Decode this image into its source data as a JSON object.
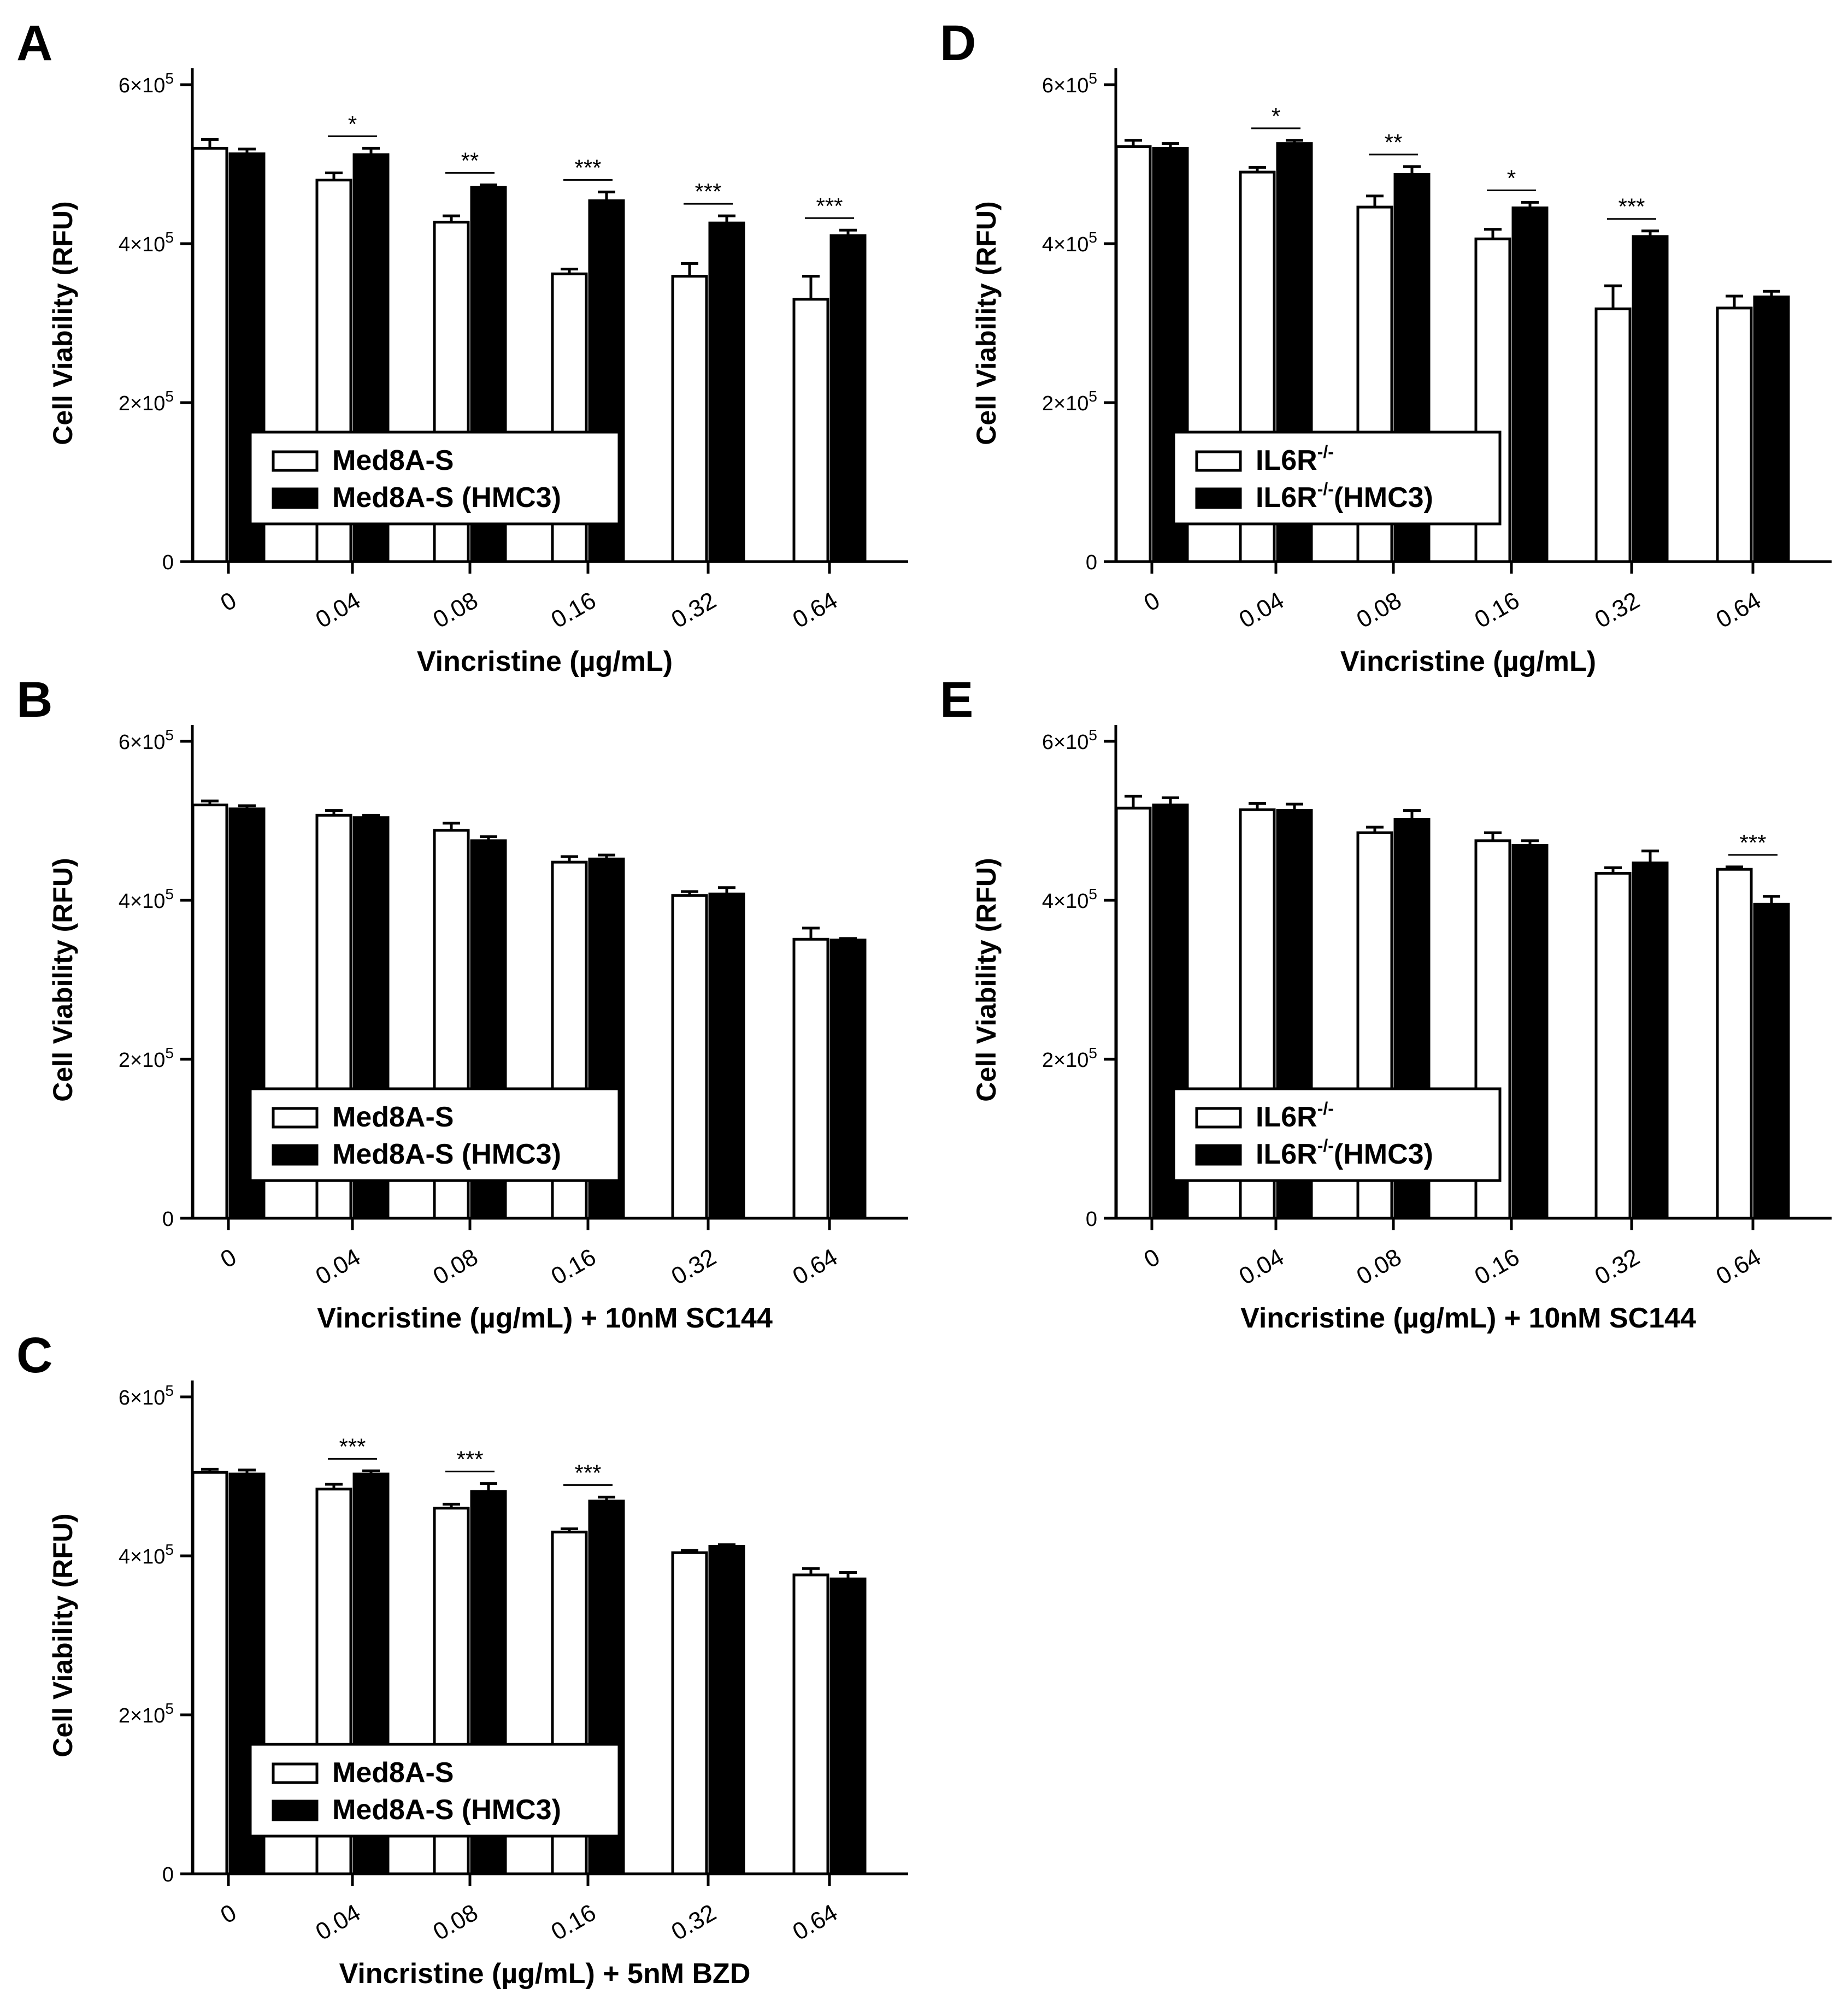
{
  "panels_meta": {
    "panel_letters": [
      "A",
      "D",
      "B",
      "E",
      "C"
    ]
  },
  "chart_data": [
    {
      "panel": "A",
      "type": "bar",
      "categories": [
        "0",
        "0.04",
        "0.08",
        "0.16",
        "0.32",
        "0.64"
      ],
      "xlabel": "Vincristine (µg/mL)",
      "ylabel": "Cell Viability (RFU)",
      "ylim": [
        0,
        600000
      ],
      "yticks": [
        {
          "value": 0,
          "label": "0",
          "sup": ""
        },
        {
          "value": 200000,
          "label": "2×10",
          "sup": "5"
        },
        {
          "value": 400000,
          "label": "4×10",
          "sup": "5"
        },
        {
          "value": 600000,
          "label": "6×10",
          "sup": "5"
        }
      ],
      "series": [
        {
          "name": "Med8A-S",
          "name_sup": "",
          "name_suffix": "",
          "fill": "#ffffff",
          "values": [
            520000,
            480000,
            427000,
            362000,
            359000,
            330000
          ],
          "errors": [
            11000,
            9000,
            8000,
            6000,
            16000,
            29000
          ]
        },
        {
          "name": "Med8A-S (HMC3)",
          "name_sup": "",
          "name_suffix": "",
          "fill": "#000000",
          "values": [
            513000,
            512000,
            471000,
            454000,
            426000,
            410000
          ],
          "errors": [
            6000,
            8000,
            3000,
            11000,
            9000,
            7000
          ]
        }
      ],
      "significance": [
        {
          "category": "0.04",
          "label": "*"
        },
        {
          "category": "0.08",
          "label": "**"
        },
        {
          "category": "0.16",
          "label": "***"
        },
        {
          "category": "0.32",
          "label": "***"
        },
        {
          "category": "0.64",
          "label": "***"
        }
      ],
      "legend": "bottom-left"
    },
    {
      "panel": "D",
      "type": "bar",
      "categories": [
        "0",
        "0.04",
        "0.08",
        "0.16",
        "0.32",
        "0.64"
      ],
      "xlabel": "Vincristine (µg/mL)",
      "ylabel": "Cell Viability (RFU)",
      "ylim": [
        0,
        600000
      ],
      "yticks": [
        {
          "value": 0,
          "label": "0",
          "sup": ""
        },
        {
          "value": 200000,
          "label": "2×10",
          "sup": "5"
        },
        {
          "value": 400000,
          "label": "4×10",
          "sup": "5"
        },
        {
          "value": 600000,
          "label": "6×10",
          "sup": "5"
        }
      ],
      "series": [
        {
          "name": "IL6R",
          "name_sup": "-/-",
          "name_suffix": "",
          "fill": "#ffffff",
          "values": [
            522000,
            490000,
            446000,
            406000,
            318000,
            319000
          ],
          "errors": [
            8000,
            6000,
            14000,
            12000,
            29000,
            15000
          ]
        },
        {
          "name": "IL6R",
          "name_sup": "-/-",
          "name_suffix": "(HMC3)",
          "fill": "#000000",
          "values": [
            520000,
            526000,
            487000,
            445000,
            409000,
            333000
          ],
          "errors": [
            6000,
            4000,
            10000,
            7000,
            7000,
            7000
          ]
        }
      ],
      "significance": [
        {
          "category": "0.04",
          "label": "*"
        },
        {
          "category": "0.08",
          "label": "**"
        },
        {
          "category": "0.16",
          "label": "*"
        },
        {
          "category": "0.32",
          "label": "***"
        }
      ],
      "legend": "bottom-left"
    },
    {
      "panel": "B",
      "type": "bar",
      "categories": [
        "0",
        "0.04",
        "0.08",
        "0.16",
        "0.32",
        "0.64"
      ],
      "xlabel": "Vincristine (µg/mL) + 10nM SC144",
      "ylabel": "Cell Viability (RFU)",
      "ylim": [
        0,
        600000
      ],
      "yticks": [
        {
          "value": 0,
          "label": "0",
          "sup": ""
        },
        {
          "value": 200000,
          "label": "2×10",
          "sup": "5"
        },
        {
          "value": 400000,
          "label": "4×10",
          "sup": "5"
        },
        {
          "value": 600000,
          "label": "6×10",
          "sup": "5"
        }
      ],
      "series": [
        {
          "name": "Med8A-S",
          "name_sup": "",
          "name_suffix": "",
          "fill": "#ffffff",
          "values": [
            520000,
            507000,
            488000,
            448000,
            406000,
            351000
          ],
          "errors": [
            5000,
            6000,
            9000,
            7000,
            5000,
            14000
          ]
        },
        {
          "name": "Med8A-S (HMC3)",
          "name_sup": "",
          "name_suffix": "",
          "fill": "#000000",
          "values": [
            515000,
            504000,
            475000,
            452000,
            408000,
            350000
          ],
          "errors": [
            4000,
            3000,
            5000,
            5000,
            8000,
            2000
          ]
        }
      ],
      "significance": [],
      "legend": "bottom-left"
    },
    {
      "panel": "E",
      "type": "bar",
      "categories": [
        "0",
        "0.04",
        "0.08",
        "0.16",
        "0.32",
        "0.64"
      ],
      "xlabel": "Vincristine (µg/mL) + 10nM SC144",
      "ylabel": "Cell Viability (RFU)",
      "ylim": [
        0,
        600000
      ],
      "yticks": [
        {
          "value": 0,
          "label": "0",
          "sup": ""
        },
        {
          "value": 200000,
          "label": "2×10",
          "sup": "5"
        },
        {
          "value": 400000,
          "label": "4×10",
          "sup": "5"
        },
        {
          "value": 600000,
          "label": "6×10",
          "sup": "5"
        }
      ],
      "series": [
        {
          "name": "IL6R",
          "name_sup": "-/-",
          "name_suffix": "",
          "fill": "#ffffff",
          "values": [
            516000,
            514000,
            485000,
            475000,
            434000,
            439000
          ],
          "errors": [
            15000,
            8000,
            7000,
            10000,
            7000,
            3000
          ]
        },
        {
          "name": "IL6R",
          "name_sup": "-/-",
          "name_suffix": "(HMC3)",
          "fill": "#000000",
          "values": [
            520000,
            513000,
            502000,
            469000,
            447000,
            395000
          ],
          "errors": [
            9000,
            8000,
            11000,
            6000,
            15000,
            10000
          ]
        }
      ],
      "significance": [
        {
          "category": "0.64",
          "label": "***"
        }
      ],
      "legend": "bottom-left"
    },
    {
      "panel": "C",
      "type": "bar",
      "categories": [
        "0",
        "0.04",
        "0.08",
        "0.16",
        "0.32",
        "0.64"
      ],
      "xlabel": "Vincristine (µg/mL) + 5nM BZD",
      "ylabel": "Cell Viability (RFU)",
      "ylim": [
        0,
        600000
      ],
      "yticks": [
        {
          "value": 0,
          "label": "0",
          "sup": ""
        },
        {
          "value": 200000,
          "label": "2×10",
          "sup": "5"
        },
        {
          "value": 400000,
          "label": "4×10",
          "sup": "5"
        },
        {
          "value": 600000,
          "label": "6×10",
          "sup": "5"
        }
      ],
      "series": [
        {
          "name": "Med8A-S",
          "name_sup": "",
          "name_suffix": "",
          "fill": "#ffffff",
          "values": [
            505000,
            484000,
            460000,
            430000,
            404000,
            376000
          ],
          "errors": [
            4000,
            6000,
            5000,
            4000,
            3000,
            8000
          ]
        },
        {
          "name": "Med8A-S (HMC3)",
          "name_sup": "",
          "name_suffix": "",
          "fill": "#000000",
          "values": [
            503000,
            503000,
            481000,
            469000,
            412000,
            371000
          ],
          "errors": [
            5000,
            4000,
            10000,
            5000,
            2000,
            8000
          ]
        }
      ],
      "significance": [
        {
          "category": "0.04",
          "label": "***"
        },
        {
          "category": "0.08",
          "label": "***"
        },
        {
          "category": "0.16",
          "label": "***"
        }
      ],
      "legend": "bottom-left"
    }
  ]
}
